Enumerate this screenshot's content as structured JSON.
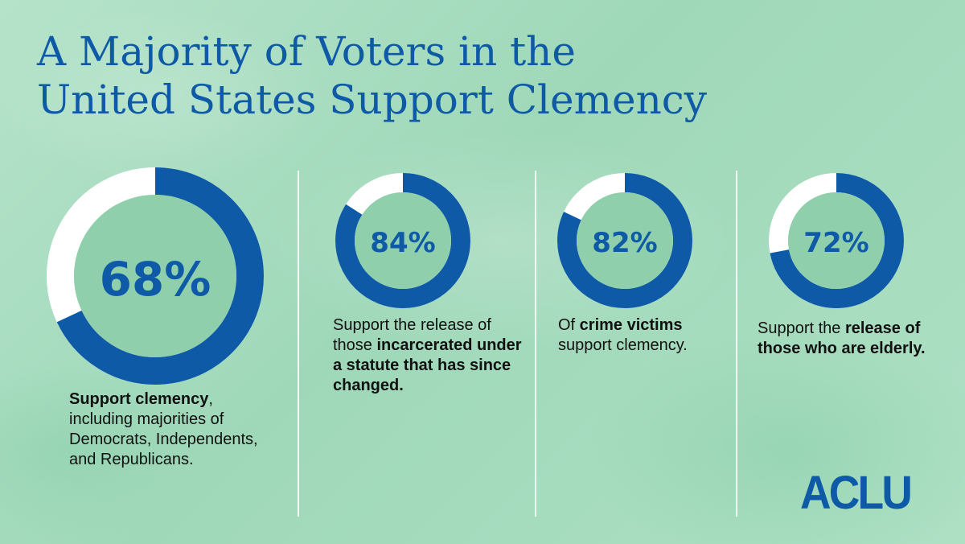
{
  "title": {
    "line1": "A Majority of Voters in the",
    "line2": "United States Support Clemency"
  },
  "colors": {
    "ring": "#0e5aa7",
    "ring_rest": "#ffffff",
    "inner": "#8fcfab",
    "text_blue": "#0e5aa7"
  },
  "chart_data": [
    {
      "type": "pie",
      "variant": "donut",
      "value": 68,
      "label": "68%",
      "description": {
        "bold": "Support clemency",
        "text": ", including majorities of Democrats, Independents, and Republicans."
      }
    },
    {
      "type": "pie",
      "variant": "donut",
      "value": 84,
      "label": "84%",
      "description": {
        "text": "Support the release of those ",
        "bold": "incarcerated under a statute that has since changed."
      }
    },
    {
      "type": "pie",
      "variant": "donut",
      "value": 82,
      "label": "82%",
      "description": {
        "text_before": "Of ",
        "bold": "crime victims",
        "text_after": " support clemency."
      }
    },
    {
      "type": "pie",
      "variant": "donut",
      "value": 72,
      "label": "72%",
      "description": {
        "text": "Support the ",
        "bold": "release of those who are elderly."
      }
    }
  ],
  "logo": "ACLU"
}
